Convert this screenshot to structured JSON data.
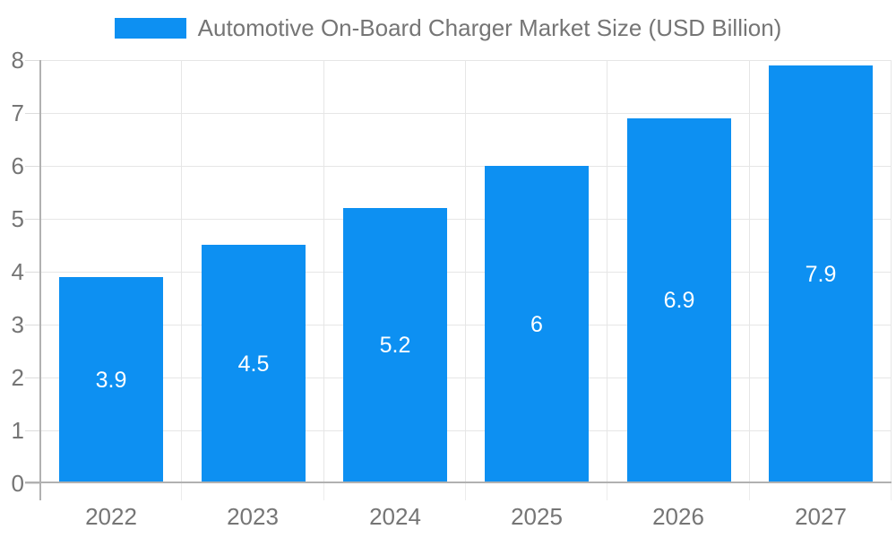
{
  "chart_data": {
    "type": "bar",
    "title": "Automotive On-Board Charger Market Size (USD Billion)",
    "categories": [
      "2022",
      "2023",
      "2024",
      "2025",
      "2026",
      "2027"
    ],
    "values": [
      3.9,
      4.5,
      5.2,
      6,
      6.9,
      7.9
    ],
    "xlabel": "",
    "ylabel": "",
    "ylim": [
      0,
      8
    ],
    "yticks": [
      0,
      1,
      2,
      3,
      4,
      5,
      6,
      7,
      8
    ],
    "grid": "on",
    "legend_position": "top",
    "colors": {
      "bar": "#0d90f2",
      "bar_value_label": "#ffffff",
      "axis_text": "#757575",
      "title_text": "#757575",
      "axis_line": "#b1b1b1",
      "gridline": "#e6e6e6"
    }
  }
}
